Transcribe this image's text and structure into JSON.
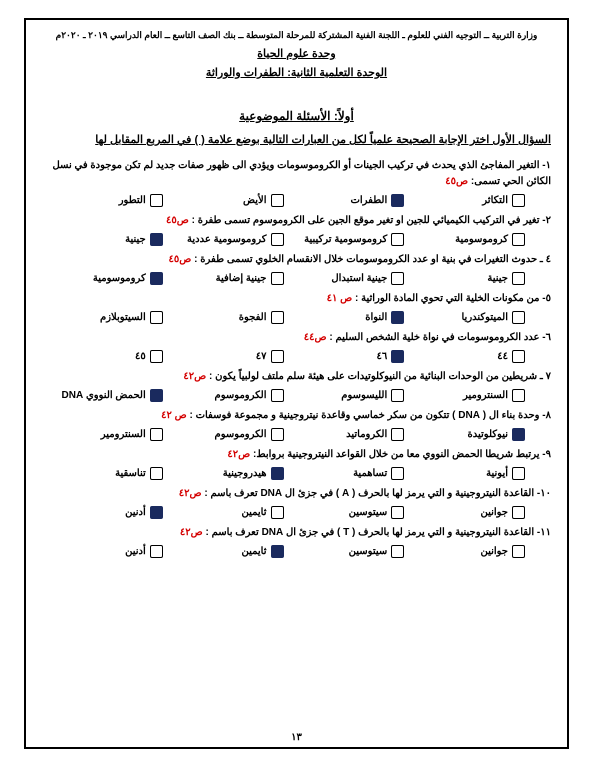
{
  "header": "وزارة التربية ــ التوجيه الفني للعلوم ـ اللجنة الفنية المشتركة للمرحلة المتوسطة ــ بنك الصف التاسع ــ العام الدراسي ٢٠١٩ ـ ٢٠٢٠م",
  "unit_title": "وحدة علوم الحياة",
  "sub_title": "الوحدة التعلمية الثانية: الطفرات والوراثة",
  "section_title": "أولاً: الأسئلة الموضوعية",
  "instruction": "السؤال الأول اختر الإجابة الصحيحة علمياً لكل من العبارات التالية بوضع علامة (   ) في المربع المقابل لها",
  "pagenum": "١٣",
  "questions": [
    {
      "num": "١-",
      "text": "التغير المفاجئ الذي يحدث في تركيب الجينات أو الكروموسومات ويؤدي الى ظهور صفات جديد   لم تكن موجودة في نسل الكائن الحي تسمى:",
      "ref": "ص٤٥",
      "opts": [
        {
          "label": "التكاثر",
          "filled": false
        },
        {
          "label": "الطفرات",
          "filled": true
        },
        {
          "label": "الأيض",
          "filled": false
        },
        {
          "label": "التطور",
          "filled": false
        }
      ]
    },
    {
      "num": "٢-",
      "text": "تغير في التركيب الكيميائي للجين او تغير موقع الجين على الكروموسوم تسمى طفرة :",
      "ref": "ص٤٥",
      "opts": [
        {
          "label": "كروموسومية",
          "filled": false
        },
        {
          "label": "كروموسومية تركيبية",
          "filled": false
        },
        {
          "label": "كروموسومية عددية",
          "filled": false
        },
        {
          "label": "جينية",
          "filled": true
        }
      ]
    },
    {
      "num": "٤ ـ",
      "text": "حدوث التغيرات في بنية او عدد الكروموسومات خلال الانقسام الخلوي تسمى طفرة :",
      "ref": "ص٤٥",
      "opts": [
        {
          "label": "جينية",
          "filled": false
        },
        {
          "label": "جينية استبدال",
          "filled": false
        },
        {
          "label": "جينية إضافية",
          "filled": false
        },
        {
          "label": "كروموسومية",
          "filled": true
        }
      ]
    },
    {
      "num": "٥-",
      "text": "من مكونات الخلية التي تحوي المادة الوراثية  :",
      "ref": "ص ٤١",
      "opts": [
        {
          "label": "الميتوكندريا",
          "filled": false
        },
        {
          "label": "النواة",
          "filled": true
        },
        {
          "label": "الفجوة",
          "filled": false
        },
        {
          "label": "السيتوبلازم",
          "filled": false
        }
      ]
    },
    {
      "num": "٦-",
      "text": "عدد الكروموسومات في نواة خلية الشخص السليم :",
      "ref": "ص٤٤",
      "opts": [
        {
          "label": "٤٤",
          "filled": false
        },
        {
          "label": "٤٦",
          "filled": true
        },
        {
          "label": "٤٧",
          "filled": false
        },
        {
          "label": "٤٥",
          "filled": false
        }
      ]
    },
    {
      "num": "٧ ـ",
      "text": "شريطين من الوحدات البنائية من النيوكلوتيدات على هيئة سلم ملتف لولبياً يكون :",
      "ref": "ص٤٢",
      "opts": [
        {
          "label": "السنترومير",
          "filled": false
        },
        {
          "label": "الليسوسوم",
          "filled": false
        },
        {
          "label": "الكروموسوم",
          "filled": false
        },
        {
          "label": "الحمض النووي DNA",
          "filled": true
        }
      ]
    },
    {
      "num": "٨-",
      "text": "وحدة بناء ال ( DNA ) تتكون من سكر خماسي وقاعدة نيتروجينية و مجموعة فوسفات :",
      "ref": "ص ٤٢",
      "opts": [
        {
          "label": "نيوكلوتيدة",
          "filled": true
        },
        {
          "label": "الكروماتيد",
          "filled": false
        },
        {
          "label": "الكروموسوم",
          "filled": false
        },
        {
          "label": "السنترومير",
          "filled": false
        }
      ]
    },
    {
      "num": "٩-",
      "text": "يرتبط شريطا الحمض النووي معا من خلال القواعد النيتروجينية بروابط:",
      "ref": "ص٤٢",
      "opts": [
        {
          "label": "أيونية",
          "filled": false
        },
        {
          "label": "تساهمية",
          "filled": false
        },
        {
          "label": "هيدروجينية",
          "filled": true
        },
        {
          "label": "تناسقية",
          "filled": false
        }
      ]
    },
    {
      "num": "١٠-",
      "text": "القاعدة النيتروجينية و التي يرمز لها بالحرف ( A ) في جزئ ال DNA  تعرف باسم  :",
      "ref": "ص٤٢",
      "opts": [
        {
          "label": "جوانين",
          "filled": false
        },
        {
          "label": "سيتوسين",
          "filled": false
        },
        {
          "label": "ثايمين",
          "filled": false
        },
        {
          "label": "أدنين",
          "filled": true
        }
      ]
    },
    {
      "num": "١١-",
      "text": "القاعدة النيتروجينية و التي يرمز لها بالحرف ( T ) في جزئ ال DNA  تعرف باسم  :",
      "ref": "ص٤٢",
      "opts": [
        {
          "label": "جوانين",
          "filled": false
        },
        {
          "label": "سيتوسين",
          "filled": false
        },
        {
          "label": "ثايمين",
          "filled": true
        },
        {
          "label": "أدنين",
          "filled": false
        }
      ]
    }
  ]
}
